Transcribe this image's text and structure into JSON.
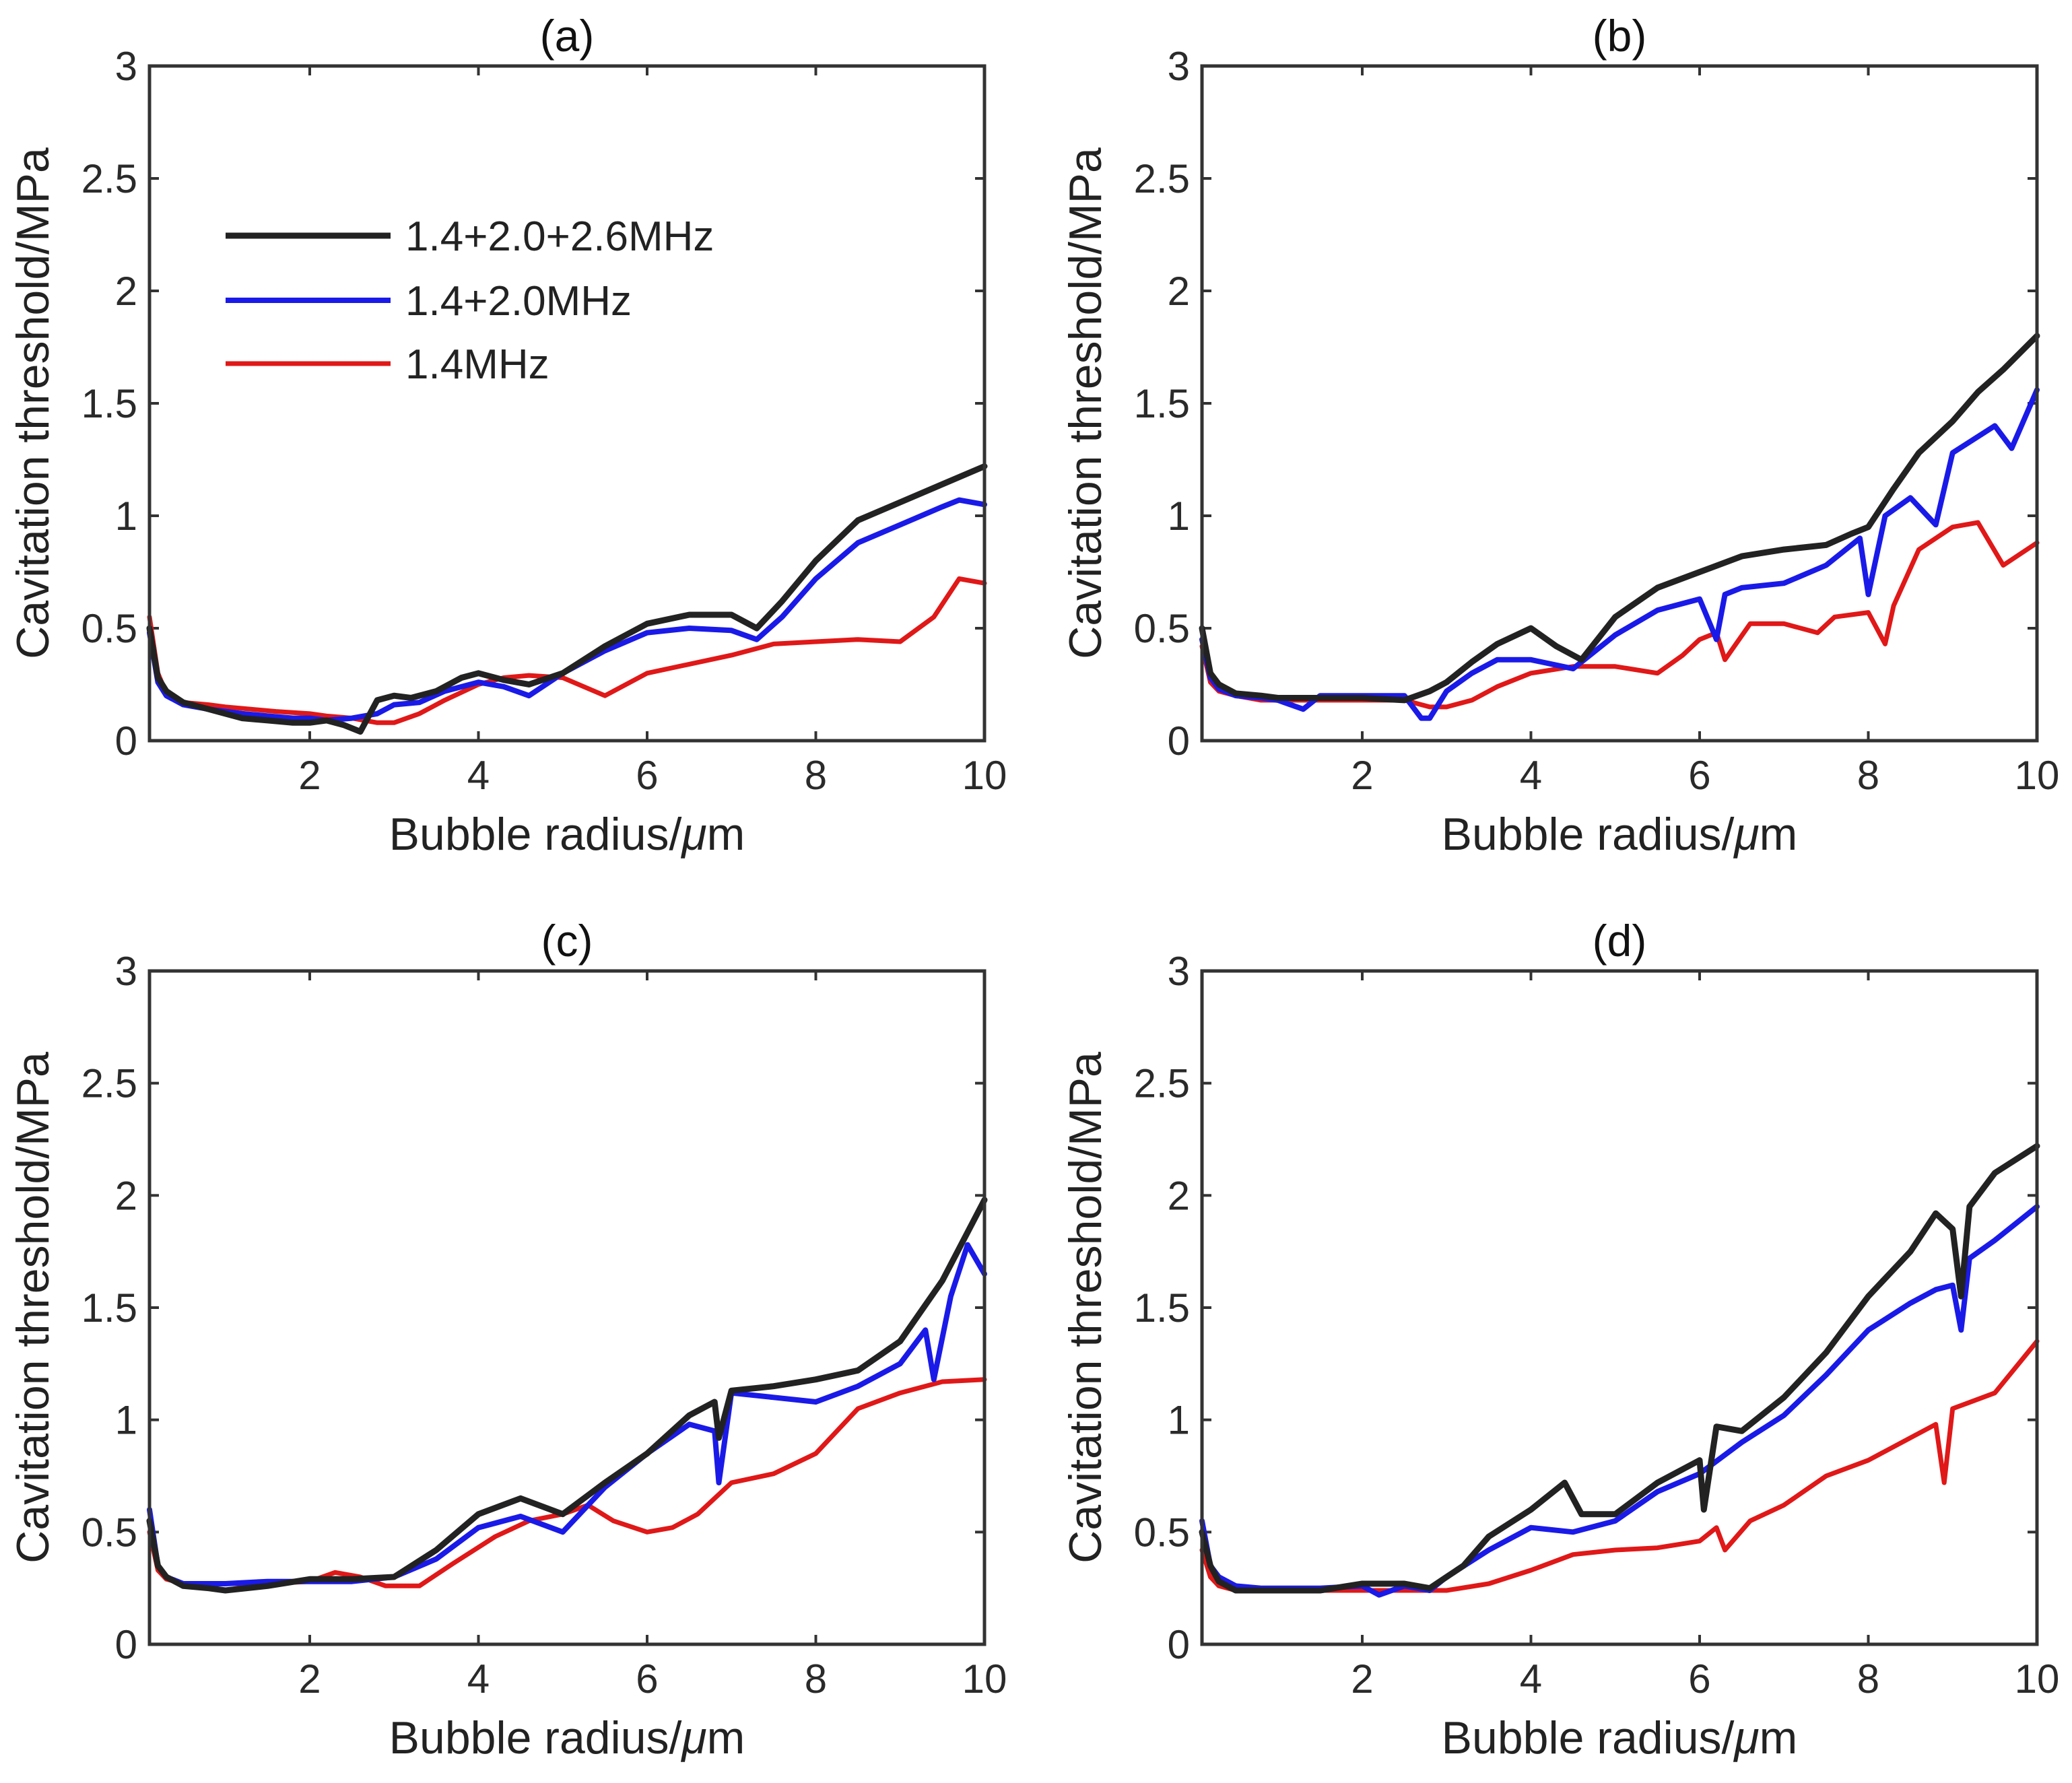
{
  "chart_data": [
    {
      "type": "line",
      "title": "(a)",
      "xlabel": "Bubble radius/",
      "xlabel_unit": "μm",
      "ylabel": "Cavitation threshold/MPa",
      "xlim": [
        0.1,
        10
      ],
      "ylim": [
        0,
        3
      ],
      "xticks": [
        "2",
        "4",
        "6",
        "8",
        "10"
      ],
      "yticks": [
        "0",
        "0.5",
        "1",
        "1.5",
        "2",
        "2.5",
        "3"
      ],
      "legend_position": "upper-left",
      "series": [
        {
          "name": "1.4+2.0+2.6MHz",
          "color": "#222222",
          "x": [
            0.1,
            0.2,
            0.3,
            0.5,
            0.8,
            1.0,
            1.2,
            1.5,
            1.8,
            2.0,
            2.2,
            2.4,
            2.6,
            2.8,
            3.0,
            3.2,
            3.5,
            3.8,
            4.0,
            4.3,
            4.6,
            5.0,
            5.5,
            6.0,
            6.5,
            7.0,
            7.3,
            7.6,
            8.0,
            8.5,
            9.0,
            9.5,
            10.0
          ],
          "values": [
            0.5,
            0.28,
            0.22,
            0.17,
            0.14,
            0.12,
            0.1,
            0.09,
            0.08,
            0.08,
            0.09,
            0.07,
            0.04,
            0.18,
            0.2,
            0.19,
            0.22,
            0.28,
            0.3,
            0.27,
            0.25,
            0.3,
            0.42,
            0.52,
            0.56,
            0.56,
            0.5,
            0.62,
            0.8,
            0.98,
            1.06,
            1.14,
            1.22
          ]
        },
        {
          "name": "1.4+2.0MHz",
          "color": "#1a1ae8",
          "x": [
            0.1,
            0.2,
            0.3,
            0.5,
            0.8,
            1.0,
            1.2,
            1.5,
            1.8,
            2.0,
            2.2,
            2.5,
            2.8,
            3.0,
            3.3,
            3.6,
            4.0,
            4.3,
            4.6,
            5.0,
            5.5,
            6.0,
            6.5,
            7.0,
            7.3,
            7.6,
            8.0,
            8.5,
            9.0,
            9.5,
            9.7,
            10.0
          ],
          "values": [
            0.48,
            0.26,
            0.2,
            0.16,
            0.14,
            0.13,
            0.12,
            0.11,
            0.1,
            0.1,
            0.09,
            0.1,
            0.12,
            0.16,
            0.17,
            0.22,
            0.26,
            0.24,
            0.2,
            0.3,
            0.4,
            0.48,
            0.5,
            0.49,
            0.45,
            0.55,
            0.72,
            0.88,
            0.96,
            1.04,
            1.07,
            1.05
          ]
        },
        {
          "name": "1.4MHz",
          "color": "#e01818",
          "x": [
            0.1,
            0.2,
            0.3,
            0.5,
            0.8,
            1.0,
            1.3,
            1.6,
            2.0,
            2.2,
            2.5,
            2.8,
            3.0,
            3.3,
            3.6,
            4.0,
            4.3,
            4.6,
            5.0,
            5.5,
            6.0,
            6.5,
            7.0,
            7.5,
            8.0,
            8.5,
            9.0,
            9.4,
            9.7,
            10.0
          ],
          "values": [
            0.55,
            0.3,
            0.21,
            0.17,
            0.16,
            0.15,
            0.14,
            0.13,
            0.12,
            0.11,
            0.1,
            0.08,
            0.08,
            0.12,
            0.18,
            0.25,
            0.28,
            0.29,
            0.28,
            0.2,
            0.3,
            0.34,
            0.38,
            0.43,
            0.44,
            0.45,
            0.44,
            0.55,
            0.72,
            0.7
          ]
        }
      ]
    },
    {
      "type": "line",
      "title": "(b)",
      "xlabel": "Bubble radius/",
      "xlabel_unit": "μm",
      "ylabel": "Cavitation threshold/MPa",
      "xlim": [
        0.1,
        10
      ],
      "ylim": [
        0,
        3
      ],
      "xticks": [
        "2",
        "4",
        "6",
        "8",
        "10"
      ],
      "yticks": [
        "0",
        "0.5",
        "1",
        "1.5",
        "2",
        "2.5",
        "3"
      ],
      "series": [
        {
          "name": "1.4+2.0+2.6MHz",
          "color": "#222222",
          "x": [
            0.1,
            0.2,
            0.3,
            0.5,
            0.8,
            1.0,
            1.5,
            2.0,
            2.5,
            2.8,
            3.0,
            3.3,
            3.6,
            4.0,
            4.3,
            4.6,
            5.0,
            5.5,
            6.0,
            6.5,
            7.0,
            7.5,
            7.8,
            8.0,
            8.3,
            8.6,
            9.0,
            9.3,
            9.6,
            10.0
          ],
          "values": [
            0.5,
            0.3,
            0.25,
            0.21,
            0.2,
            0.19,
            0.19,
            0.19,
            0.18,
            0.22,
            0.26,
            0.35,
            0.43,
            0.5,
            0.42,
            0.36,
            0.55,
            0.68,
            0.75,
            0.82,
            0.85,
            0.87,
            0.92,
            0.95,
            1.12,
            1.28,
            1.42,
            1.55,
            1.65,
            1.8
          ]
        },
        {
          "name": "1.4+2.0MHz",
          "color": "#1a1ae8",
          "x": [
            0.1,
            0.2,
            0.3,
            0.5,
            0.8,
            1.0,
            1.3,
            1.5,
            2.0,
            2.5,
            2.7,
            2.8,
            3.0,
            3.3,
            3.6,
            4.0,
            4.5,
            5.0,
            5.5,
            6.0,
            6.2,
            6.3,
            6.5,
            7.0,
            7.5,
            7.9,
            8.0,
            8.2,
            8.5,
            8.8,
            9.0,
            9.5,
            9.7,
            10.0
          ],
          "values": [
            0.45,
            0.28,
            0.23,
            0.2,
            0.19,
            0.18,
            0.14,
            0.2,
            0.2,
            0.2,
            0.1,
            0.1,
            0.22,
            0.3,
            0.36,
            0.36,
            0.32,
            0.47,
            0.58,
            0.63,
            0.45,
            0.65,
            0.68,
            0.7,
            0.78,
            0.9,
            0.65,
            1.0,
            1.08,
            0.96,
            1.28,
            1.4,
            1.3,
            1.56
          ]
        },
        {
          "name": "1.4MHz",
          "color": "#e01818",
          "x": [
            0.1,
            0.2,
            0.3,
            0.5,
            0.8,
            1.0,
            1.5,
            2.0,
            2.5,
            2.8,
            3.0,
            3.3,
            3.6,
            4.0,
            4.5,
            5.0,
            5.5,
            5.8,
            6.0,
            6.2,
            6.3,
            6.6,
            7.0,
            7.4,
            7.6,
            8.0,
            8.2,
            8.3,
            8.6,
            9.0,
            9.3,
            9.6,
            10.0
          ],
          "values": [
            0.42,
            0.26,
            0.22,
            0.2,
            0.18,
            0.18,
            0.18,
            0.18,
            0.18,
            0.15,
            0.15,
            0.18,
            0.24,
            0.3,
            0.33,
            0.33,
            0.3,
            0.38,
            0.45,
            0.48,
            0.36,
            0.52,
            0.52,
            0.48,
            0.55,
            0.57,
            0.43,
            0.6,
            0.85,
            0.95,
            0.97,
            0.78,
            0.88
          ]
        }
      ]
    },
    {
      "type": "line",
      "title": "(c)",
      "xlabel": "Bubble radius/",
      "xlabel_unit": "μm",
      "ylabel": "Cavitation threshold/MPa",
      "xlim": [
        0.1,
        10
      ],
      "ylim": [
        0,
        3
      ],
      "xticks": [
        "2",
        "4",
        "6",
        "8",
        "10"
      ],
      "yticks": [
        "0",
        "0.5",
        "1",
        "1.5",
        "2",
        "2.5",
        "3"
      ],
      "series": [
        {
          "name": "1.4+2.0+2.6MHz",
          "color": "#222222",
          "x": [
            0.1,
            0.2,
            0.3,
            0.5,
            0.8,
            1.0,
            1.5,
            2.0,
            2.5,
            3.0,
            3.5,
            4.0,
            4.5,
            5.0,
            5.5,
            6.0,
            6.5,
            6.8,
            6.85,
            7.0,
            7.5,
            8.0,
            8.5,
            9.0,
            9.5,
            10.0
          ],
          "values": [
            0.55,
            0.35,
            0.3,
            0.26,
            0.25,
            0.24,
            0.26,
            0.29,
            0.29,
            0.3,
            0.42,
            0.58,
            0.65,
            0.58,
            0.72,
            0.85,
            1.02,
            1.08,
            0.92,
            1.13,
            1.15,
            1.18,
            1.22,
            1.35,
            1.62,
            1.98
          ]
        },
        {
          "name": "1.4+2.0MHz",
          "color": "#1a1ae8",
          "x": [
            0.1,
            0.2,
            0.3,
            0.5,
            0.8,
            1.0,
            1.5,
            2.0,
            2.5,
            3.0,
            3.5,
            4.0,
            4.5,
            5.0,
            5.5,
            6.0,
            6.5,
            6.8,
            6.85,
            7.0,
            7.5,
            8.0,
            8.5,
            9.0,
            9.3,
            9.4,
            9.6,
            9.8,
            10.0
          ],
          "values": [
            0.6,
            0.35,
            0.3,
            0.27,
            0.27,
            0.27,
            0.28,
            0.28,
            0.28,
            0.3,
            0.38,
            0.52,
            0.57,
            0.5,
            0.7,
            0.85,
            0.98,
            0.95,
            0.72,
            1.12,
            1.1,
            1.08,
            1.15,
            1.25,
            1.4,
            1.18,
            1.55,
            1.78,
            1.65
          ]
        },
        {
          "name": "1.4MHz",
          "color": "#e01818",
          "x": [
            0.1,
            0.2,
            0.3,
            0.5,
            0.8,
            1.0,
            1.5,
            2.0,
            2.3,
            2.6,
            2.9,
            3.3,
            3.7,
            4.2,
            4.6,
            5.0,
            5.3,
            5.6,
            6.0,
            6.3,
            6.6,
            7.0,
            7.5,
            8.0,
            8.5,
            9.0,
            9.5,
            10.0
          ],
          "values": [
            0.5,
            0.33,
            0.29,
            0.27,
            0.27,
            0.27,
            0.27,
            0.28,
            0.32,
            0.3,
            0.26,
            0.26,
            0.36,
            0.48,
            0.55,
            0.58,
            0.62,
            0.55,
            0.5,
            0.52,
            0.58,
            0.72,
            0.76,
            0.85,
            1.05,
            1.12,
            1.17,
            1.18
          ]
        }
      ]
    },
    {
      "type": "line",
      "title": "(d)",
      "xlabel": "Bubble radius/",
      "xlabel_unit": "μm",
      "ylabel": "Cavitation threshold/MPa",
      "xlim": [
        0.1,
        10
      ],
      "ylim": [
        0,
        3
      ],
      "xticks": [
        "2",
        "4",
        "6",
        "8",
        "10"
      ],
      "yticks": [
        "0",
        "0.5",
        "1",
        "1.5",
        "2",
        "2.5",
        "3"
      ],
      "series": [
        {
          "name": "1.4+2.0+2.6MHz",
          "color": "#222222",
          "x": [
            0.1,
            0.2,
            0.3,
            0.5,
            0.8,
            1.0,
            1.5,
            2.0,
            2.5,
            2.8,
            3.0,
            3.2,
            3.5,
            4.0,
            4.4,
            4.6,
            5.0,
            5.5,
            6.0,
            6.05,
            6.2,
            6.5,
            7.0,
            7.5,
            8.0,
            8.5,
            8.8,
            9.0,
            9.1,
            9.2,
            9.5,
            10.0
          ],
          "values": [
            0.5,
            0.35,
            0.28,
            0.24,
            0.24,
            0.24,
            0.24,
            0.27,
            0.27,
            0.25,
            0.3,
            0.35,
            0.48,
            0.6,
            0.72,
            0.58,
            0.58,
            0.72,
            0.82,
            0.6,
            0.97,
            0.95,
            1.1,
            1.3,
            1.55,
            1.75,
            1.92,
            1.85,
            1.55,
            1.95,
            2.1,
            2.22
          ]
        },
        {
          "name": "1.4+2.0MHz",
          "color": "#1a1ae8",
          "x": [
            0.1,
            0.2,
            0.3,
            0.5,
            0.8,
            1.0,
            1.5,
            2.0,
            2.2,
            2.5,
            2.8,
            3.0,
            3.5,
            4.0,
            4.5,
            5.0,
            5.5,
            6.0,
            6.5,
            7.0,
            7.5,
            8.0,
            8.5,
            8.8,
            9.0,
            9.1,
            9.2,
            9.5,
            10.0
          ],
          "values": [
            0.55,
            0.35,
            0.3,
            0.26,
            0.25,
            0.25,
            0.25,
            0.26,
            0.22,
            0.26,
            0.24,
            0.3,
            0.42,
            0.52,
            0.5,
            0.55,
            0.68,
            0.76,
            0.9,
            1.02,
            1.2,
            1.4,
            1.52,
            1.58,
            1.6,
            1.4,
            1.72,
            1.8,
            1.95
          ]
        },
        {
          "name": "1.4MHz",
          "color": "#e01818",
          "x": [
            0.1,
            0.2,
            0.3,
            0.5,
            0.8,
            1.0,
            1.5,
            2.0,
            2.5,
            2.8,
            3.0,
            3.5,
            4.0,
            4.5,
            5.0,
            5.5,
            6.0,
            6.2,
            6.3,
            6.6,
            7.0,
            7.5,
            8.0,
            8.5,
            8.8,
            8.9,
            9.0,
            9.5,
            10.0
          ],
          "values": [
            0.42,
            0.3,
            0.26,
            0.24,
            0.24,
            0.24,
            0.24,
            0.24,
            0.24,
            0.24,
            0.24,
            0.27,
            0.33,
            0.4,
            0.42,
            0.43,
            0.46,
            0.52,
            0.42,
            0.55,
            0.62,
            0.75,
            0.82,
            0.92,
            0.98,
            0.72,
            1.05,
            1.12,
            1.35
          ]
        }
      ]
    }
  ]
}
